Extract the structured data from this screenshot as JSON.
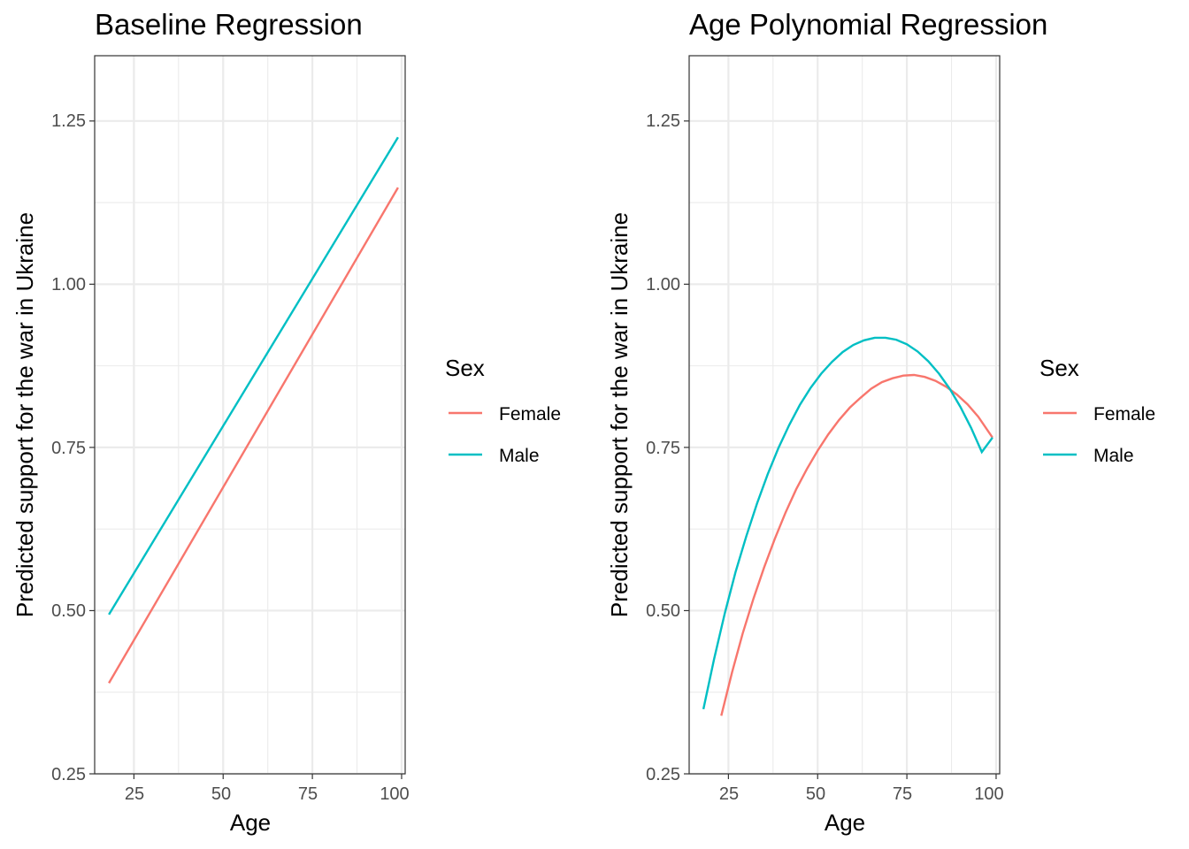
{
  "chart_data": [
    {
      "type": "line",
      "title": "Baseline Regression",
      "xlabel": "Age",
      "ylabel": "Predicted support for the war in Ukraine",
      "xlim": [
        14,
        101
      ],
      "ylim": [
        0.25,
        1.35
      ],
      "xticks": [
        "25",
        "50",
        "75",
        "100"
      ],
      "yticks": [
        "0.25",
        "0.50",
        "0.75",
        "1.00",
        "1.25"
      ],
      "grid": true,
      "legend": {
        "title": "Sex",
        "position": "right",
        "entries": [
          "Female",
          "Male"
        ]
      },
      "series": [
        {
          "name": "Female",
          "color": "#F8766D",
          "x": [
            18,
            99
          ],
          "y": [
            0.389,
            1.148
          ]
        },
        {
          "name": "Male",
          "color": "#00BFC4",
          "x": [
            18,
            99
          ],
          "y": [
            0.494,
            1.225
          ]
        }
      ]
    },
    {
      "type": "line",
      "title": "Age Polynomial Regression",
      "xlabel": "Age",
      "ylabel": "Predicted support for the war in Ukraine",
      "xlim": [
        14,
        101
      ],
      "ylim": [
        0.25,
        1.35
      ],
      "xticks": [
        "25",
        "50",
        "75",
        "100"
      ],
      "yticks": [
        "0.25",
        "0.50",
        "0.75",
        "1.00",
        "1.25"
      ],
      "grid": true,
      "legend": {
        "title": "Sex",
        "position": "right",
        "entries": [
          "Female",
          "Male"
        ]
      },
      "series": [
        {
          "name": "Female",
          "color": "#F8766D",
          "x": [
            23,
            26,
            29,
            32,
            35,
            38,
            41,
            44,
            47,
            50,
            53,
            56,
            59,
            62,
            65,
            68,
            71,
            74,
            77,
            80,
            83,
            86,
            89,
            92,
            95,
            99
          ],
          "y": [
            0.339,
            0.405,
            0.465,
            0.518,
            0.566,
            0.61,
            0.65,
            0.686,
            0.717,
            0.745,
            0.77,
            0.792,
            0.811,
            0.826,
            0.84,
            0.85,
            0.856,
            0.86,
            0.861,
            0.858,
            0.852,
            0.843,
            0.831,
            0.816,
            0.797,
            0.765
          ]
        },
        {
          "name": "Male",
          "color": "#00BFC4",
          "x": [
            18,
            21,
            24,
            27,
            30,
            33,
            36,
            39,
            42,
            45,
            48,
            51,
            54,
            57,
            60,
            63,
            66,
            69,
            72,
            75,
            78,
            81,
            84,
            87,
            90,
            93,
            96,
            99
          ],
          "y": [
            0.349,
            0.426,
            0.496,
            0.559,
            0.614,
            0.664,
            0.709,
            0.749,
            0.784,
            0.815,
            0.841,
            0.863,
            0.881,
            0.896,
            0.907,
            0.914,
            0.918,
            0.918,
            0.915,
            0.908,
            0.897,
            0.882,
            0.863,
            0.84,
            0.812,
            0.78,
            0.743,
            0.765
          ]
        }
      ]
    }
  ]
}
